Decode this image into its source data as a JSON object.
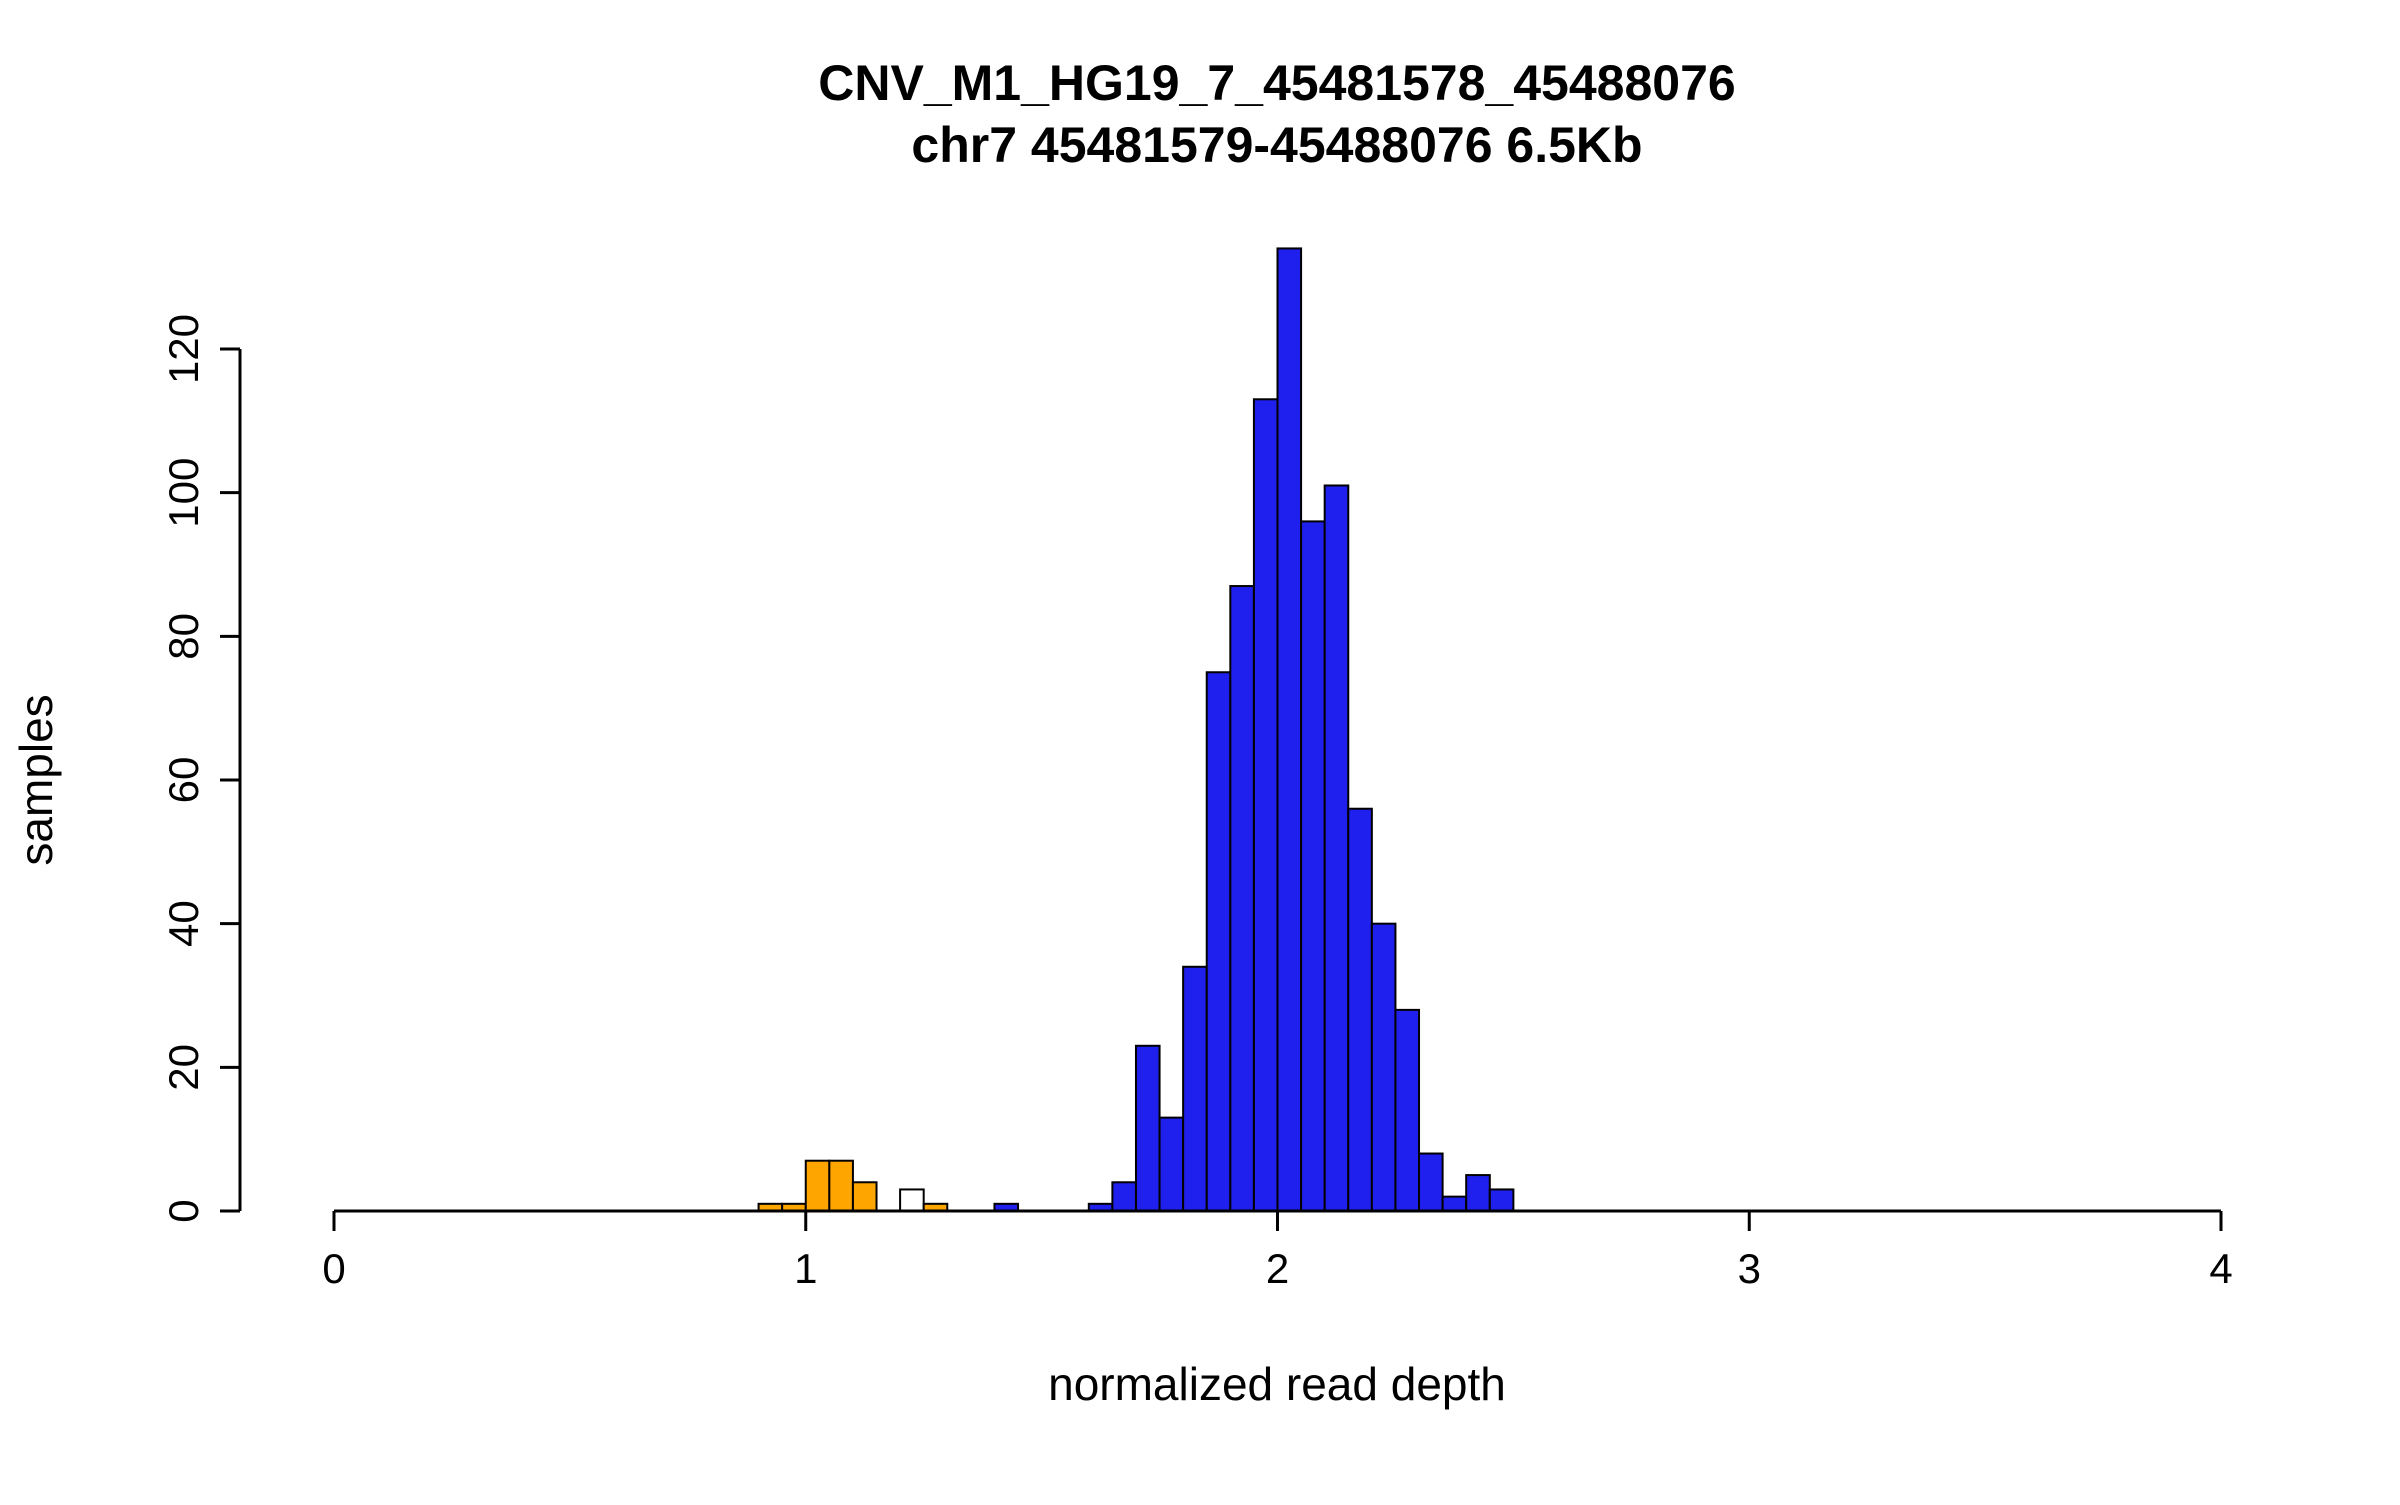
{
  "figure": {
    "background": "#FFFFFF"
  },
  "chart_data": {
    "type": "bar",
    "title": "CNV_M1_HG19_7_45481578_45488076",
    "subtitle": "chr7 45481579-45488076 6.5Kb",
    "xlabel": "normalized read depth",
    "ylabel": "samples",
    "xlim": [
      0,
      4
    ],
    "ylim": [
      0,
      134
    ],
    "xticks": [
      0,
      1,
      2,
      3,
      4
    ],
    "yticks": [
      0,
      20,
      40,
      60,
      80,
      100,
      120
    ],
    "bin_width": 0.05,
    "grid": false,
    "legend": "none",
    "colors": {
      "orange": "#FFA500",
      "blue": "#2020EE",
      "white": "#FFFFFF",
      "bar_border": "#000000"
    },
    "bars": [
      {
        "x": 0.9,
        "count": 1,
        "color": "orange"
      },
      {
        "x": 0.95,
        "count": 1,
        "color": "orange"
      },
      {
        "x": 1.0,
        "count": 7,
        "color": "orange"
      },
      {
        "x": 1.05,
        "count": 7,
        "color": "orange"
      },
      {
        "x": 1.1,
        "count": 4,
        "color": "orange"
      },
      {
        "x": 1.2,
        "count": 3,
        "color": "white"
      },
      {
        "x": 1.25,
        "count": 1,
        "color": "orange"
      },
      {
        "x": 1.4,
        "count": 1,
        "color": "blue"
      },
      {
        "x": 1.6,
        "count": 1,
        "color": "blue"
      },
      {
        "x": 1.65,
        "count": 4,
        "color": "blue"
      },
      {
        "x": 1.7,
        "count": 23,
        "color": "blue"
      },
      {
        "x": 1.75,
        "count": 13,
        "color": "blue"
      },
      {
        "x": 1.8,
        "count": 34,
        "color": "blue"
      },
      {
        "x": 1.85,
        "count": 75,
        "color": "blue"
      },
      {
        "x": 1.9,
        "count": 87,
        "color": "blue"
      },
      {
        "x": 1.95,
        "count": 113,
        "color": "blue"
      },
      {
        "x": 2.0,
        "count": 134,
        "color": "blue"
      },
      {
        "x": 2.05,
        "count": 96,
        "color": "blue"
      },
      {
        "x": 2.1,
        "count": 101,
        "color": "blue"
      },
      {
        "x": 2.15,
        "count": 56,
        "color": "blue"
      },
      {
        "x": 2.2,
        "count": 40,
        "color": "blue"
      },
      {
        "x": 2.25,
        "count": 28,
        "color": "blue"
      },
      {
        "x": 2.3,
        "count": 8,
        "color": "blue"
      },
      {
        "x": 2.35,
        "count": 2,
        "color": "blue"
      },
      {
        "x": 2.4,
        "count": 5,
        "color": "blue"
      },
      {
        "x": 2.45,
        "count": 3,
        "color": "blue"
      }
    ]
  }
}
